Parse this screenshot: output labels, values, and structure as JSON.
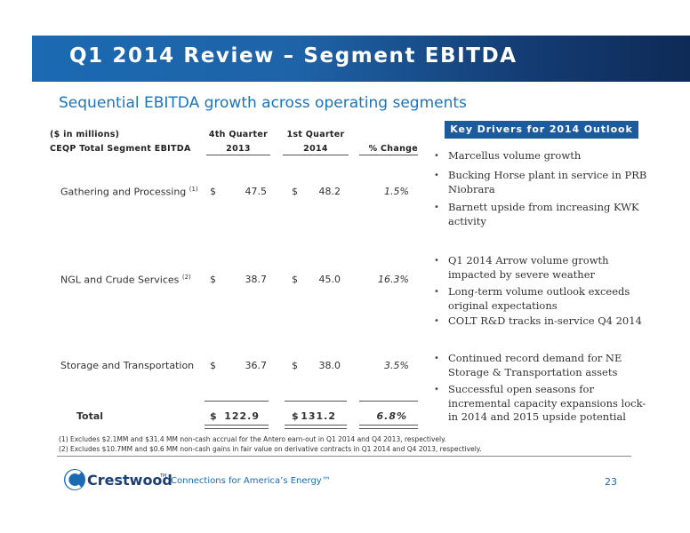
{
  "header": {
    "title": "Q1 2014 Review – Segment EBITDA",
    "subtitle": "Sequential EBITDA growth across operating segments"
  },
  "table": {
    "units_label": "($ in millions)",
    "row_label_header": "CEQP Total Segment EBITDA",
    "col1_header_line1": "4th Quarter",
    "col1_header_line2": "2013",
    "col2_header_line1": "1st Quarter",
    "col2_header_line2": "2014",
    "col3_header": "% Change",
    "currency_symbol": "$",
    "rows": [
      {
        "label": "Gathering and Processing",
        "note": "(1)",
        "q4_2013": "47.5",
        "q1_2014": "48.2",
        "change": "1.5%"
      },
      {
        "label": "NGL and Crude Services",
        "note": "(2)",
        "q4_2013": "38.7",
        "q1_2014": "45.0",
        "change": "16.3%"
      },
      {
        "label": "Storage and Transportation",
        "note": "",
        "q4_2013": "36.7",
        "q1_2014": "38.0",
        "change": "3.5%"
      }
    ],
    "total": {
      "label": "Total",
      "q4_2013": "122.9",
      "q1_2014": "131.2",
      "change": "6.8%"
    }
  },
  "key_drivers": {
    "title": "Key Drivers for 2014 Outlook",
    "groups": [
      [
        "Marcellus volume growth",
        "Bucking Horse plant in service in PRB Niobrara",
        "Barnett upside from increasing KWK activity"
      ],
      [
        "Q1 2014 Arrow volume growth impacted by severe weather",
        "Long-term volume outlook exceeds original expectations",
        "COLT R&D tracks in-service Q4 2014"
      ],
      [
        "Continued record demand for NE Storage & Transportation assets",
        "Successful open seasons for incremental capacity expansions lock-in 2014 and 2015 upside potential"
      ]
    ]
  },
  "footnotes": [
    "(1)  Excludes $2.1MM and $31.4 MM non-cash accrual for the Antero earn-out in Q1 2014 and Q4 2013, respectively.",
    "(2)  Excludes $10.7MM and $0.6 MM non-cash gains in fair value on derivative contracts in Q1 2014 and Q4 2013, respectively."
  ],
  "footer": {
    "logo_text": "Crestwood",
    "trademark": "TM",
    "tagline": "Connections for America’s Energy™",
    "page_number": "23"
  },
  "colors": {
    "brand_blue": "#1b6ab2",
    "banner_dark": "#0e2a56",
    "key_box": "#1c5b9e"
  }
}
